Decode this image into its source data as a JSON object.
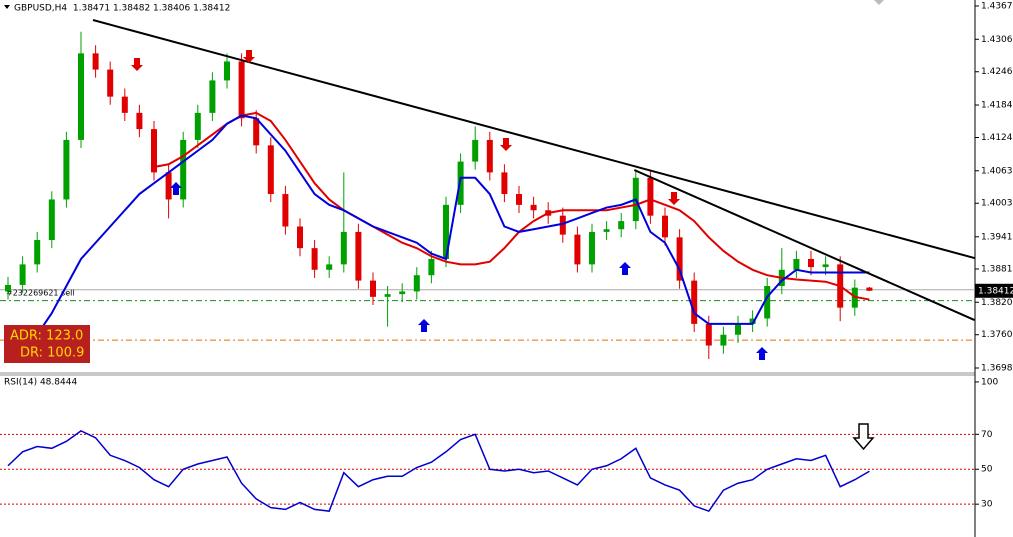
{
  "chart_data": [
    {
      "type": "candlestick",
      "title": "GBPUSD,H4  1.38471 1.38482 1.38406 1.38412",
      "open": [
        1.384,
        1.3852,
        1.389,
        1.3935,
        1.401,
        1.412,
        1.428,
        1.425,
        1.42,
        1.417,
        1.414,
        1.406,
        1.401,
        1.412,
        1.417,
        1.423,
        1.4265,
        1.416,
        1.411,
        1.402,
        1.396,
        1.392,
        1.388,
        1.389,
        1.395,
        1.386,
        1.383,
        1.3835,
        1.384,
        1.387,
        1.39,
        1.4,
        1.408,
        1.412,
        1.406,
        1.402,
        1.4,
        1.399,
        1.398,
        1.3945,
        1.389,
        1.395,
        1.3955,
        1.397,
        1.405,
        1.398,
        1.394,
        1.386,
        1.378,
        1.374,
        1.376,
        1.378,
        1.379,
        1.385,
        1.388,
        1.39,
        1.3885,
        1.389,
        1.381,
        1.38471
      ],
      "high": [
        1.3867,
        1.3905,
        1.395,
        1.4025,
        1.4135,
        1.432,
        1.4295,
        1.4265,
        1.4215,
        1.4185,
        1.4155,
        1.4075,
        1.4135,
        1.4185,
        1.4245,
        1.428,
        1.428,
        1.4175,
        1.4125,
        1.4035,
        1.3975,
        1.3935,
        1.3905,
        1.406,
        1.3965,
        1.3875,
        1.385,
        1.3855,
        1.3885,
        1.3915,
        1.4015,
        1.4095,
        1.4145,
        1.4135,
        1.4075,
        1.4035,
        1.4015,
        1.4005,
        1.3995,
        1.396,
        1.3965,
        1.397,
        1.3985,
        1.4065,
        1.4065,
        1.3995,
        1.3955,
        1.3875,
        1.3795,
        1.3775,
        1.3795,
        1.3805,
        1.3865,
        1.392,
        1.3915,
        1.3915,
        1.3905,
        1.3905,
        1.3862,
        1.38482
      ],
      "low": [
        1.3825,
        1.3837,
        1.3875,
        1.392,
        1.3995,
        1.4105,
        1.4235,
        1.4185,
        1.4155,
        1.4125,
        1.4045,
        1.3975,
        1.3995,
        1.4105,
        1.4155,
        1.4215,
        1.4145,
        1.4095,
        1.4005,
        1.3945,
        1.3905,
        1.3865,
        1.3865,
        1.3875,
        1.3845,
        1.3815,
        1.3775,
        1.382,
        1.3825,
        1.3855,
        1.3885,
        1.3985,
        1.4065,
        1.4045,
        1.4005,
        1.3985,
        1.3975,
        1.3965,
        1.393,
        1.3875,
        1.3875,
        1.3935,
        1.394,
        1.3955,
        1.3965,
        1.3925,
        1.3845,
        1.3765,
        1.3715,
        1.3725,
        1.3745,
        1.3765,
        1.3775,
        1.3835,
        1.3865,
        1.387,
        1.387,
        1.3785,
        1.3795,
        1.38406
      ],
      "close": [
        1.3852,
        1.389,
        1.3935,
        1.401,
        1.412,
        1.428,
        1.425,
        1.42,
        1.417,
        1.414,
        1.406,
        1.401,
        1.412,
        1.417,
        1.423,
        1.4265,
        1.416,
        1.411,
        1.402,
        1.396,
        1.392,
        1.388,
        1.389,
        1.395,
        1.386,
        1.383,
        1.3835,
        1.384,
        1.387,
        1.39,
        1.4,
        1.408,
        1.412,
        1.406,
        1.402,
        1.4,
        1.399,
        1.398,
        1.3945,
        1.389,
        1.395,
        1.3955,
        1.397,
        1.405,
        1.398,
        1.394,
        1.386,
        1.378,
        1.374,
        1.376,
        1.378,
        1.379,
        1.385,
        1.388,
        1.39,
        1.3885,
        1.389,
        1.381,
        1.3847,
        1.38412
      ],
      "up_color": "#00a000",
      "down_color": "#e00000",
      "series": [
        {
          "color": "#e00000",
          "values": [
            null,
            null,
            null,
            null,
            null,
            null,
            null,
            null,
            null,
            null,
            1.407,
            1.4075,
            1.409,
            1.411,
            1.413,
            1.415,
            1.4165,
            1.417,
            1.4155,
            1.412,
            1.408,
            1.404,
            1.401,
            1.399,
            1.3975,
            1.396,
            1.3945,
            1.393,
            1.392,
            1.3905,
            1.3895,
            1.389,
            1.389,
            1.3895,
            1.392,
            1.395,
            1.397,
            1.3985,
            1.399,
            1.399,
            1.399,
            1.399,
            1.3995,
            1.4,
            1.401,
            1.4,
            1.399,
            1.397,
            1.394,
            1.3915,
            1.3895,
            1.388,
            1.387,
            1.3865,
            1.3862,
            1.386,
            1.3858,
            1.385,
            1.383,
            1.3825
          ]
        },
        {
          "color": "#0000e0",
          "values": [
            1.372,
            1.3735,
            1.376,
            1.38,
            1.385,
            1.39,
            1.393,
            1.396,
            1.399,
            1.402,
            1.404,
            1.406,
            1.408,
            1.41,
            1.412,
            1.415,
            1.4165,
            1.416,
            1.413,
            1.41,
            1.406,
            1.402,
            1.4,
            1.399,
            1.3975,
            1.396,
            1.395,
            1.394,
            1.393,
            1.391,
            1.39,
            1.405,
            1.405,
            1.402,
            1.396,
            1.395,
            1.3955,
            1.396,
            1.3965,
            1.3975,
            1.3985,
            1.3995,
            1.4,
            1.401,
            1.395,
            1.393,
            1.388,
            1.38,
            1.378,
            1.378,
            1.378,
            1.378,
            1.383,
            1.386,
            1.388,
            1.3875,
            1.3875,
            1.3875,
            1.3875,
            1.3875
          ]
        }
      ],
      "trendlines": [
        {
          "x": [
            5.82,
            66.2
          ],
          "y": [
            1.43416,
            1.39017
          ]
        },
        {
          "x": [
            42.9,
            66.2
          ],
          "y": [
            1.40644,
            1.37871
          ]
        }
      ],
      "order_line": {
        "value": 1.3843,
        "label": "#232269621 sell"
      },
      "levels": [
        {
          "value": 1.3823,
          "color": "#1a8a1a"
        },
        {
          "value": 1.375,
          "color": "#e07000"
        }
      ],
      "current_price": {
        "value": 1.38412,
        "label": "1.38412"
      },
      "info_box": [
        "ADR: 123.0",
        "DR: 100.9"
      ],
      "ylim": [
        1.36911,
        1.43786
      ],
      "yticks": [
        1.43675,
        {
          "value": 1.4306,
          "label": "1.43060"
        },
        {
          "value": 1.4246,
          "label": "1.42460"
        },
        1.41845,
        1.41245,
        {
          "value": 1.4063,
          "label": "1.40630"
        },
        {
          "value": 1.4003,
          "label": "1.40030"
        },
        {
          "value": 1.3941,
          "label": "1.39410"
        },
        1.38815,
        {
          "value": 1.382,
          "label": "1.38200"
        },
        {
          "value": 1.376,
          "label": "1.37600"
        },
        1.36985
      ]
    },
    {
      "type": "line",
      "title": "RSI(14) 48.8444",
      "series": [
        {
          "color": "#0000d0",
          "values": [
            52,
            60,
            63,
            62,
            66,
            72,
            68,
            58,
            55,
            51,
            44,
            40,
            50,
            53,
            55,
            57,
            42,
            33,
            28,
            27,
            31,
            27,
            26,
            48,
            40,
            44,
            46,
            46,
            51,
            54,
            60,
            67,
            70,
            50,
            49,
            50,
            48,
            49,
            45,
            41,
            50,
            52,
            56,
            62,
            45,
            41,
            38,
            29,
            26,
            38,
            42,
            44,
            50,
            53,
            56,
            55,
            58,
            40,
            44,
            48.8444
          ]
        }
      ],
      "levels": [
        70,
        50,
        30
      ],
      "ylim": [
        11.2,
        103.4
      ],
      "yticks": [
        100,
        70,
        50,
        30
      ]
    }
  ]
}
